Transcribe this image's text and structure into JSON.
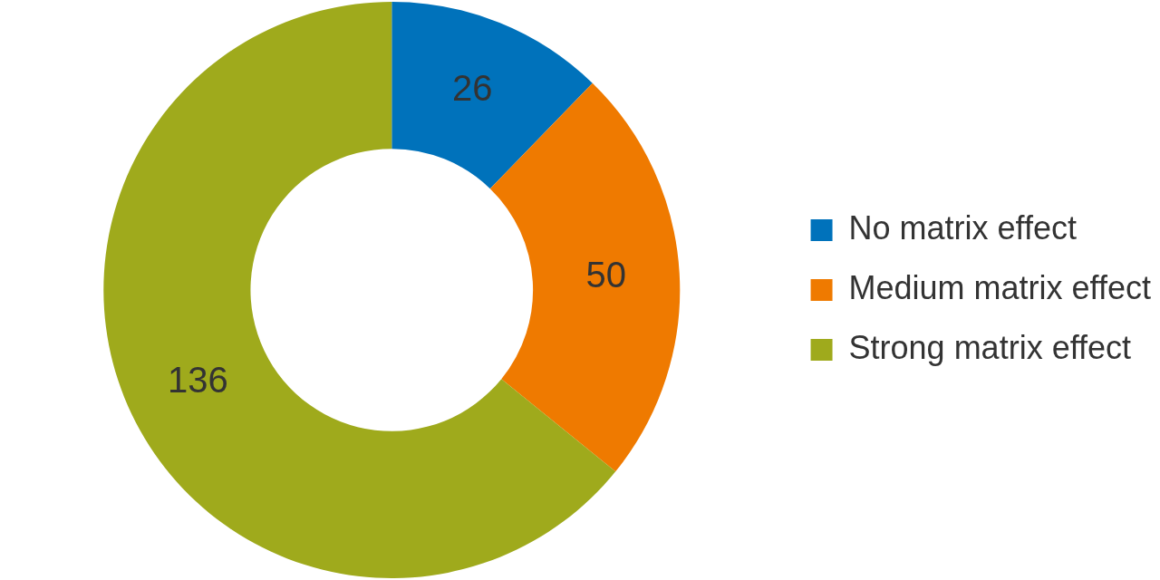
{
  "chart_data": {
    "type": "donut",
    "categories": [
      "No matrix effect",
      "Medium matrix effect",
      "Strong matrix effect"
    ],
    "values": [
      26,
      50,
      136
    ],
    "colors": [
      "#0072bb",
      "#ef7a00",
      "#9faa1c"
    ],
    "data_labels": true,
    "legend": "right"
  }
}
